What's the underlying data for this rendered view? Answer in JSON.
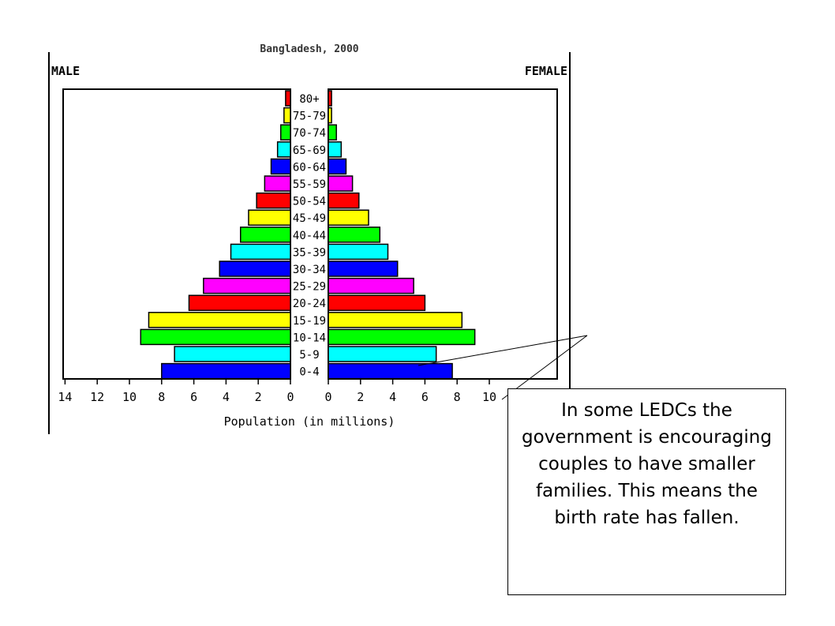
{
  "chart_data": {
    "type": "bar",
    "subtitle": "Bangladesh, 2000",
    "left_label": "MALE",
    "right_label": "FEMALE",
    "xlabel": "Population (in millions)",
    "xlim": [
      0,
      14
    ],
    "left_ticks": [
      "14",
      "12",
      "10",
      "8",
      "6",
      "4",
      "2",
      "0"
    ],
    "right_ticks": [
      "0",
      "2",
      "4",
      "6",
      "8",
      "10"
    ],
    "categories": [
      "80+",
      "75-79",
      "70-74",
      "65-69",
      "60-64",
      "55-59",
      "50-54",
      "45-49",
      "40-44",
      "35-39",
      "30-34",
      "25-29",
      "20-24",
      "15-19",
      "10-14",
      "5-9",
      "0-4"
    ],
    "series": [
      {
        "name": "MALE",
        "values": [
          0.3,
          0.4,
          0.6,
          0.8,
          1.2,
          1.6,
          2.1,
          2.6,
          3.1,
          3.7,
          4.4,
          5.4,
          6.3,
          8.8,
          9.3,
          7.2,
          8.0
        ]
      },
      {
        "name": "FEMALE",
        "values": [
          0.2,
          0.2,
          0.5,
          0.8,
          1.1,
          1.5,
          1.9,
          2.5,
          3.2,
          3.7,
          4.3,
          5.3,
          6.0,
          8.3,
          9.1,
          6.7,
          7.7
        ]
      }
    ],
    "bar_colors": [
      "#ff0000",
      "#ffff00",
      "#00ff00",
      "#00ffff",
      "#0000ff",
      "#ff00ff",
      "#ff0000",
      "#ffff00",
      "#00ff00",
      "#00ffff",
      "#0000ff",
      "#ff00ff",
      "#ff0000",
      "#ffff00",
      "#00ff00",
      "#00ffff",
      "#0000ff"
    ],
    "grid": false
  },
  "callout": {
    "text": "In some LEDCs the government is encouraging couples to have smaller families. This means the birth rate has fallen."
  }
}
